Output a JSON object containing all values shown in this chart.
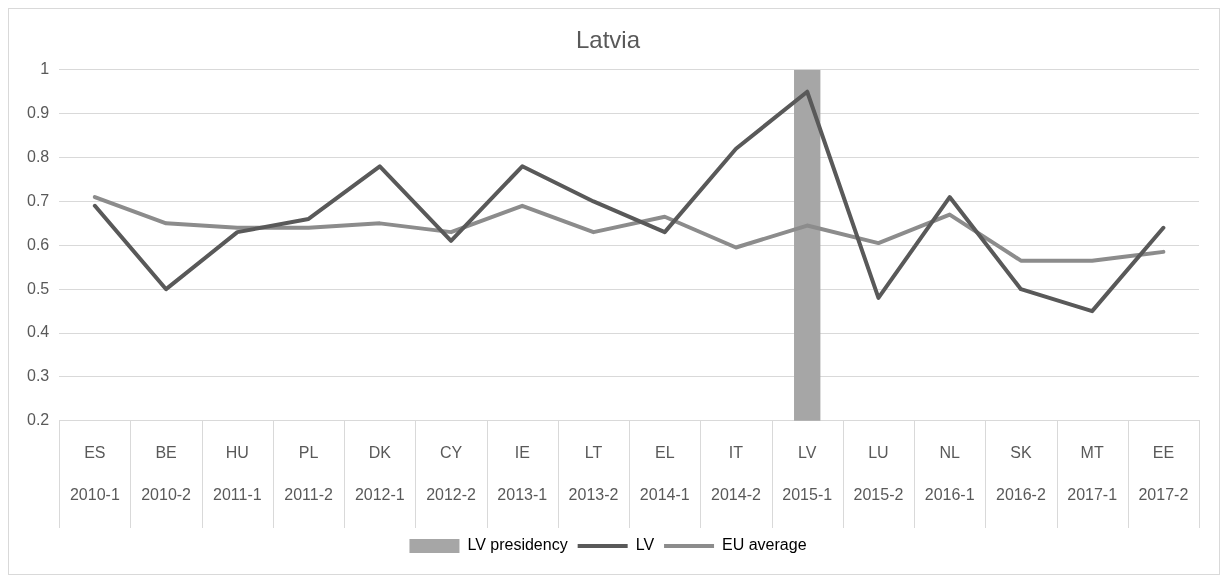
{
  "chart_data": {
    "type": "line",
    "title": "Latvia",
    "categories": [
      "ES\n2010-1",
      "BE\n2010-2",
      "HU\n2011-1",
      "PL\n2011-2",
      "DK\n2012-1",
      "CY\n2012-2",
      "IE\n2013-1",
      "LT\n2013-2",
      "EL\n2014-1",
      "IT\n2014-2",
      "LV\n2015-1",
      "LU\n2015-2",
      "NL\n2016-1",
      "SK\n2016-2",
      "MT\n2017-1",
      "EE\n2017-2"
    ],
    "series": [
      {
        "name": "LV presidency",
        "type": "bar",
        "color": "#a6a6a6",
        "values": [
          null,
          null,
          null,
          null,
          null,
          null,
          null,
          null,
          null,
          null,
          1,
          null,
          null,
          null,
          null,
          null
        ]
      },
      {
        "name": "LV",
        "color": "#595959",
        "values": [
          0.69,
          0.5,
          0.63,
          0.66,
          0.78,
          0.61,
          0.78,
          0.7,
          0.63,
          0.82,
          0.95,
          0.48,
          0.71,
          0.5,
          0.45,
          0.64
        ]
      },
      {
        "name": "EU average",
        "color": "#8c8c8c",
        "values": [
          0.71,
          0.65,
          0.64,
          0.64,
          0.65,
          0.63,
          0.69,
          0.63,
          0.665,
          0.595,
          0.645,
          0.605,
          0.67,
          0.565,
          0.565,
          0.585
        ]
      }
    ],
    "ylim": [
      0.2,
      1
    ],
    "yticks": [
      0.2,
      0.3,
      0.4,
      0.5,
      0.6,
      0.7,
      0.8,
      0.9,
      1
    ],
    "grid": "y",
    "legend": "bottom",
    "marker": "none",
    "line_style": "solid"
  }
}
